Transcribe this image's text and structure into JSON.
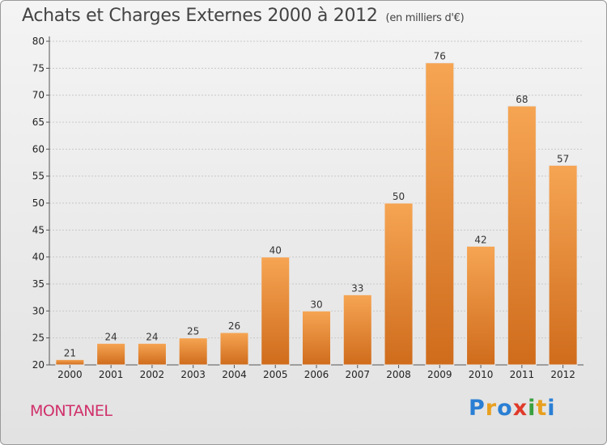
{
  "chart_data": {
    "type": "bar",
    "title": "Achats et Charges Externes 2000 à 2012",
    "subtitle": "(en milliers d'€)",
    "categories": [
      "2000",
      "2001",
      "2002",
      "2003",
      "2004",
      "2005",
      "2006",
      "2007",
      "2008",
      "2009",
      "2010",
      "2011",
      "2012"
    ],
    "values": [
      21,
      24,
      24,
      25,
      26,
      40,
      30,
      33,
      50,
      76,
      42,
      68,
      57
    ],
    "ylim": [
      20,
      80
    ],
    "yticks": [
      20,
      25,
      30,
      35,
      40,
      45,
      50,
      55,
      60,
      65,
      70,
      75,
      80
    ],
    "grid": true,
    "bar_color_top": "#f6a553",
    "bar_color_bottom": "#cf6c1c"
  },
  "commune": "MONTANEL",
  "logo": {
    "letters": [
      "P",
      "r",
      "o",
      "x",
      "i",
      "t",
      "i"
    ],
    "colors": [
      "#2a7fd4",
      "#e8a020",
      "#2a7fd4",
      "#e03a2a",
      "#3aa040",
      "#e8a020",
      "#2a7fd4"
    ]
  }
}
